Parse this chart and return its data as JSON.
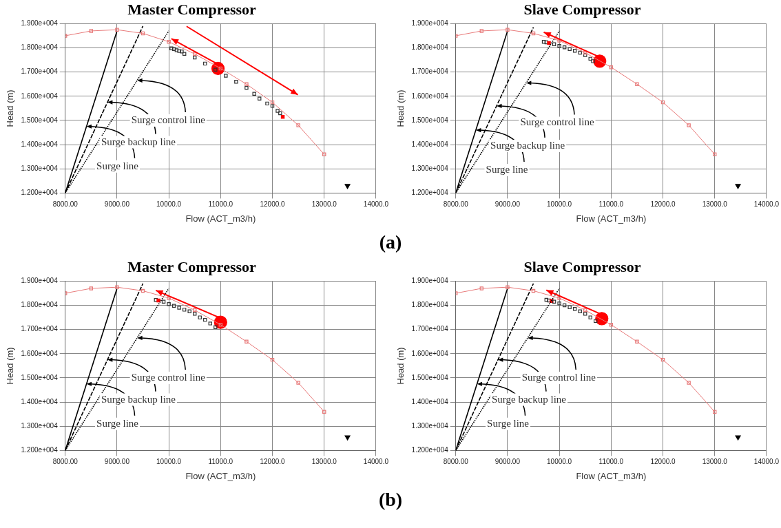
{
  "chart_data": [
    {
      "type": "line",
      "title": "Master Compressor",
      "xlabel": "Flow (ACT_m3/h)",
      "ylabel": "Head (m)",
      "grid": true,
      "xlim": [
        8000,
        14000
      ],
      "xticks": [
        {
          "value": 8000,
          "label": "8000.00"
        },
        {
          "value": 9000,
          "label": "9000.00"
        },
        {
          "value": 10000,
          "label": "10000.0"
        },
        {
          "value": 11000,
          "label": "11000.0"
        },
        {
          "value": 12000,
          "label": "12000.0"
        },
        {
          "value": 13000,
          "label": "13000.0"
        },
        {
          "value": 14000,
          "label": "14000.0"
        }
      ],
      "ylim": [
        12000,
        19000
      ],
      "yticks": [
        {
          "value": 12000,
          "label": "1.200e+004"
        },
        {
          "value": 13000,
          "label": "1.300e+004"
        },
        {
          "value": 14000,
          "label": "1.400e+004"
        },
        {
          "value": 15000,
          "label": "1.500e+004"
        },
        {
          "value": 16000,
          "label": "1.600e+004"
        },
        {
          "value": 17000,
          "label": "1.700e+004"
        },
        {
          "value": 18000,
          "label": "1.800e+004"
        },
        {
          "value": 19000,
          "label": "1.900e+004"
        }
      ],
      "series": [
        {
          "type": "line",
          "color": "#e87a7a",
          "marker": "square",
          "x": [
            8000,
            8500,
            9000,
            9500,
            10000,
            10500,
            11000,
            11500,
            12000,
            12500,
            13000
          ],
          "values": [
            18500,
            18700,
            18750,
            18600,
            18250,
            17750,
            17150,
            16500,
            15750,
            14800,
            13600
          ]
        },
        {
          "type": "line",
          "color": "#000000",
          "marker": "none",
          "line_style": "solid",
          "x": [
            8000,
            9000
          ],
          "values": [
            12000,
            18700
          ]
        },
        {
          "type": "line",
          "color": "#000000",
          "marker": "none",
          "line_style": "dashed",
          "x": [
            8000,
            9500
          ],
          "values": [
            12000,
            18900
          ]
        },
        {
          "type": "line",
          "color": "#000000",
          "marker": "none",
          "line_style": "dotted",
          "x": [
            8000,
            10000
          ],
          "values": [
            12000,
            18700
          ]
        },
        {
          "type": "scatter",
          "color": "#333333",
          "marker": "square",
          "x": [
            10050,
            10100,
            10150,
            10200,
            10250,
            10300,
            10500,
            10700,
            10900,
            11100,
            11300,
            11500,
            11650,
            11750,
            11900,
            12000,
            12100,
            12150,
            12200
          ],
          "values": [
            17980,
            17950,
            17900,
            17870,
            17850,
            17750,
            17600,
            17350,
            17100,
            16850,
            16600,
            16350,
            16100,
            15900,
            15700,
            15600,
            15400,
            15300,
            15150
          ],
          "colors": [
            "#333333",
            "#333333",
            "#333333",
            "#333333",
            "#333333",
            "#333333",
            "#333333",
            "#333333",
            "#333333",
            "#333333",
            "#333333",
            "#333333",
            "#333333",
            "#333333",
            "#333333",
            "#333333",
            "#333333",
            "#333333",
            "#ff0000"
          ]
        },
        {
          "type": "scatter",
          "color": "#ff0000",
          "marker": "circle",
          "x": [
            10950
          ],
          "values": [
            17150
          ]
        },
        {
          "type": "scatter",
          "color": "#000000",
          "marker": "triangle",
          "x": [
            13450
          ],
          "values": [
            12300
          ]
        }
      ],
      "annotations": [
        {
          "text": "Surge control line",
          "x": 9390,
          "y": 16650
        },
        {
          "text": "Surge backup line",
          "x": 8815,
          "y": 15750
        },
        {
          "text": "Surge line",
          "x": 8410,
          "y": 14750
        },
        "(a)"
      ]
    },
    {
      "type": "line",
      "title": "Slave Compressor",
      "xlabel": "Flow (ACT_m3/h)",
      "ylabel": "Head (m)",
      "grid": true,
      "xlim": [
        8000,
        14000
      ],
      "xticks": [
        {
          "value": 8000,
          "label": "8000.00"
        },
        {
          "value": 9000,
          "label": "9000.00"
        },
        {
          "value": 10000,
          "label": "10000.0"
        },
        {
          "value": 11000,
          "label": "11000.0"
        },
        {
          "value": 12000,
          "label": "12000.0"
        },
        {
          "value": 13000,
          "label": "13000.0"
        },
        {
          "value": 14000,
          "label": "14000.0"
        }
      ],
      "ylim": [
        12000,
        19000
      ],
      "yticks": [
        {
          "value": 12000,
          "label": "1.200e+004"
        },
        {
          "value": 13000,
          "label": "1.300e+004"
        },
        {
          "value": 14000,
          "label": "1.400e+004"
        },
        {
          "value": 15000,
          "label": "1.500e+004"
        },
        {
          "value": 16000,
          "label": "1.600e+004"
        },
        {
          "value": 17000,
          "label": "1.700e+004"
        },
        {
          "value": 18000,
          "label": "1.800e+004"
        },
        {
          "value": 19000,
          "label": "1.900e+004"
        }
      ],
      "series": [
        {
          "type": "line",
          "color": "#e87a7a",
          "marker": "square",
          "x": [
            8000,
            8500,
            9000,
            9500,
            10000,
            10500,
            11000,
            11500,
            12000,
            12500,
            13000
          ],
          "values": [
            18500,
            18700,
            18750,
            18600,
            18300,
            17800,
            17200,
            16500,
            15750,
            14800,
            13600
          ]
        },
        {
          "type": "line",
          "color": "#000000",
          "marker": "none",
          "line_style": "solid",
          "x": [
            8000,
            9000
          ],
          "values": [
            12000,
            18700
          ]
        },
        {
          "type": "line",
          "color": "#000000",
          "marker": "none",
          "line_style": "dashed",
          "x": [
            8000,
            9500
          ],
          "values": [
            12000,
            18850
          ]
        },
        {
          "type": "line",
          "color": "#000000",
          "marker": "none",
          "line_style": "dotted",
          "x": [
            8000,
            10000
          ],
          "values": [
            12000,
            18700
          ]
        },
        {
          "type": "scatter",
          "color": "#333333",
          "marker": "square",
          "x": [
            9700,
            9750,
            9800,
            9900,
            10000,
            10100,
            10200,
            10300,
            10400,
            10500,
            10600,
            10650
          ],
          "values": [
            18250,
            18230,
            18200,
            18150,
            18080,
            18020,
            17950,
            17880,
            17800,
            17700,
            17550,
            17450
          ],
          "colors": [
            "#333333",
            "#333333",
            "#ff0000",
            "#333333",
            "#333333",
            "#333333",
            "#333333",
            "#333333",
            "#333333",
            "#333333",
            "#333333",
            "#333333"
          ]
        },
        {
          "type": "scatter",
          "color": "#ff0000",
          "marker": "circle",
          "x": [
            10780
          ],
          "values": [
            17450
          ]
        },
        {
          "type": "scatter",
          "color": "#000000",
          "marker": "triangle",
          "x": [
            13450
          ],
          "values": [
            12300
          ]
        }
      ],
      "annotations": [
        {
          "text": "Surge control line",
          "x": 9360,
          "y": 16550
        },
        {
          "text": "Surge backup line",
          "x": 8790,
          "y": 15600
        },
        {
          "text": "Surge line",
          "x": 8390,
          "y": 14600
        }
      ]
    },
    {
      "type": "line",
      "title": "Master Compressor",
      "xlabel": "Flow (ACT_m3/h)",
      "ylabel": "Head (m)",
      "grid": true,
      "xlim": [
        8000,
        14000
      ],
      "xticks": [
        {
          "value": 8000,
          "label": "8000.00"
        },
        {
          "value": 9000,
          "label": "9000.00"
        },
        {
          "value": 10000,
          "label": "10000.0"
        },
        {
          "value": 11000,
          "label": "11000.0"
        },
        {
          "value": 12000,
          "label": "12000.0"
        },
        {
          "value": 13000,
          "label": "13000.0"
        },
        {
          "value": 14000,
          "label": "14000.0"
        }
      ],
      "ylim": [
        12000,
        19000
      ],
      "yticks": [
        {
          "value": 12000,
          "label": "1.200e+004"
        },
        {
          "value": 13000,
          "label": "1.300e+004"
        },
        {
          "value": 14000,
          "label": "1.400e+004"
        },
        {
          "value": 15000,
          "label": "1.500e+004"
        },
        {
          "value": 16000,
          "label": "1.600e+004"
        },
        {
          "value": 17000,
          "label": "1.700e+004"
        },
        {
          "value": 18000,
          "label": "1.800e+004"
        },
        {
          "value": 19000,
          "label": "1.900e+004"
        }
      ],
      "series": [
        {
          "type": "line",
          "color": "#e87a7a",
          "marker": "square",
          "x": [
            8000,
            8500,
            9000,
            9500,
            10000,
            10500,
            11000,
            11500,
            12000,
            12500,
            13000
          ],
          "values": [
            18500,
            18700,
            18750,
            18600,
            18300,
            17800,
            17200,
            16500,
            15750,
            14800,
            13600
          ]
        },
        {
          "type": "line",
          "color": "#000000",
          "marker": "none",
          "line_style": "solid",
          "x": [
            8000,
            9000
          ],
          "values": [
            12000,
            18700
          ]
        },
        {
          "type": "line",
          "color": "#000000",
          "marker": "none",
          "line_style": "dashed",
          "x": [
            8000,
            9500
          ],
          "values": [
            12000,
            18900
          ]
        },
        {
          "type": "line",
          "color": "#000000",
          "marker": "none",
          "line_style": "dotted",
          "x": [
            8000,
            10000
          ],
          "values": [
            12000,
            18700
          ]
        },
        {
          "type": "scatter",
          "color": "#333333",
          "marker": "square",
          "x": [
            9750,
            9800,
            9900,
            10000,
            10100,
            10200,
            10300,
            10400,
            10500,
            10600,
            10700,
            10800,
            10900
          ],
          "values": [
            18220,
            18200,
            18150,
            18050,
            17980,
            17900,
            17820,
            17750,
            17650,
            17500,
            17400,
            17250,
            17100
          ],
          "colors": [
            "#333333",
            "#ff0000",
            "#333333",
            "#333333",
            "#333333",
            "#333333",
            "#333333",
            "#333333",
            "#333333",
            "#333333",
            "#333333",
            "#333333",
            "#333333"
          ]
        },
        {
          "type": "scatter",
          "color": "#ff0000",
          "marker": "circle",
          "x": [
            11000
          ],
          "values": [
            17300
          ]
        },
        {
          "type": "scatter",
          "color": "#000000",
          "marker": "triangle",
          "x": [
            13450
          ],
          "values": [
            12550
          ]
        }
      ],
      "annotations": [
        {
          "text": "Surge control line",
          "x": 9390,
          "y": 16650
        },
        {
          "text": "Surge backup line",
          "x": 8815,
          "y": 15750
        },
        {
          "text": "Surge line",
          "x": 8410,
          "y": 14750
        },
        "(b)"
      ]
    },
    {
      "type": "line",
      "title": "Slave Compressor",
      "xlabel": "Flow (ACT_m3/h)",
      "ylabel": "Head (m)",
      "grid": true,
      "xlim": [
        8000,
        14000
      ],
      "xticks": [
        {
          "value": 8000,
          "label": "8000.00"
        },
        {
          "value": 9000,
          "label": "9000.00"
        },
        {
          "value": 10000,
          "label": "10000.0"
        },
        {
          "value": 11000,
          "label": "11000.0"
        },
        {
          "value": 12000,
          "label": "12000.0"
        },
        {
          "value": 13000,
          "label": "13000.0"
        },
        {
          "value": 14000,
          "label": "14000.0"
        }
      ],
      "ylim": [
        12000,
        19000
      ],
      "yticks": [
        {
          "value": 12000,
          "label": "1.200e+004"
        },
        {
          "value": 13000,
          "label": "1.300e+004"
        },
        {
          "value": 14000,
          "label": "1.400e+004"
        },
        {
          "value": 15000,
          "label": "1.500e+004"
        },
        {
          "value": 16000,
          "label": "1.600e+004"
        },
        {
          "value": 17000,
          "label": "1.700e+004"
        },
        {
          "value": 18000,
          "label": "1.800e+004"
        },
        {
          "value": 19000,
          "label": "1.900e+004"
        }
      ],
      "series": [
        {
          "type": "line",
          "color": "#e87a7a",
          "marker": "square",
          "x": [
            8000,
            8500,
            9000,
            9500,
            10000,
            10500,
            11000,
            11500,
            12000,
            12500,
            13000
          ],
          "values": [
            18500,
            18700,
            18750,
            18600,
            18300,
            17800,
            17200,
            16500,
            15750,
            14800,
            13600
          ]
        },
        {
          "type": "line",
          "color": "#000000",
          "marker": "none",
          "line_style": "solid",
          "x": [
            8000,
            9000
          ],
          "values": [
            12000,
            18700
          ]
        },
        {
          "type": "line",
          "color": "#000000",
          "marker": "none",
          "line_style": "dashed",
          "x": [
            8000,
            9500
          ],
          "values": [
            12000,
            18900
          ]
        },
        {
          "type": "line",
          "color": "#000000",
          "marker": "none",
          "line_style": "dotted",
          "x": [
            8000,
            10000
          ],
          "values": [
            12000,
            18700
          ]
        },
        {
          "type": "scatter",
          "color": "#333333",
          "marker": "square",
          "x": [
            9750,
            9800,
            9850,
            9900,
            10000,
            10100,
            10200,
            10300,
            10400,
            10500,
            10600,
            10700
          ],
          "values": [
            18230,
            18200,
            18180,
            18150,
            18080,
            18000,
            17920,
            17850,
            17750,
            17650,
            17500,
            17350
          ],
          "colors": [
            "#333333",
            "#333333",
            "#ff0000",
            "#333333",
            "#333333",
            "#333333",
            "#333333",
            "#333333",
            "#333333",
            "#333333",
            "#333333",
            "#333333"
          ]
        },
        {
          "type": "scatter",
          "color": "#ff0000",
          "marker": "circle",
          "x": [
            10820
          ],
          "values": [
            17450
          ]
        },
        {
          "type": "scatter",
          "color": "#000000",
          "marker": "triangle",
          "x": [
            13450
          ],
          "values": [
            12550
          ]
        }
      ],
      "annotations": [
        {
          "text": "Surge control line",
          "x": 9390,
          "y": 16650
        },
        {
          "text": "Surge backup line",
          "x": 8815,
          "y": 15750
        },
        {
          "text": "Surge line",
          "x": 8410,
          "y": 14750
        }
      ]
    }
  ]
}
